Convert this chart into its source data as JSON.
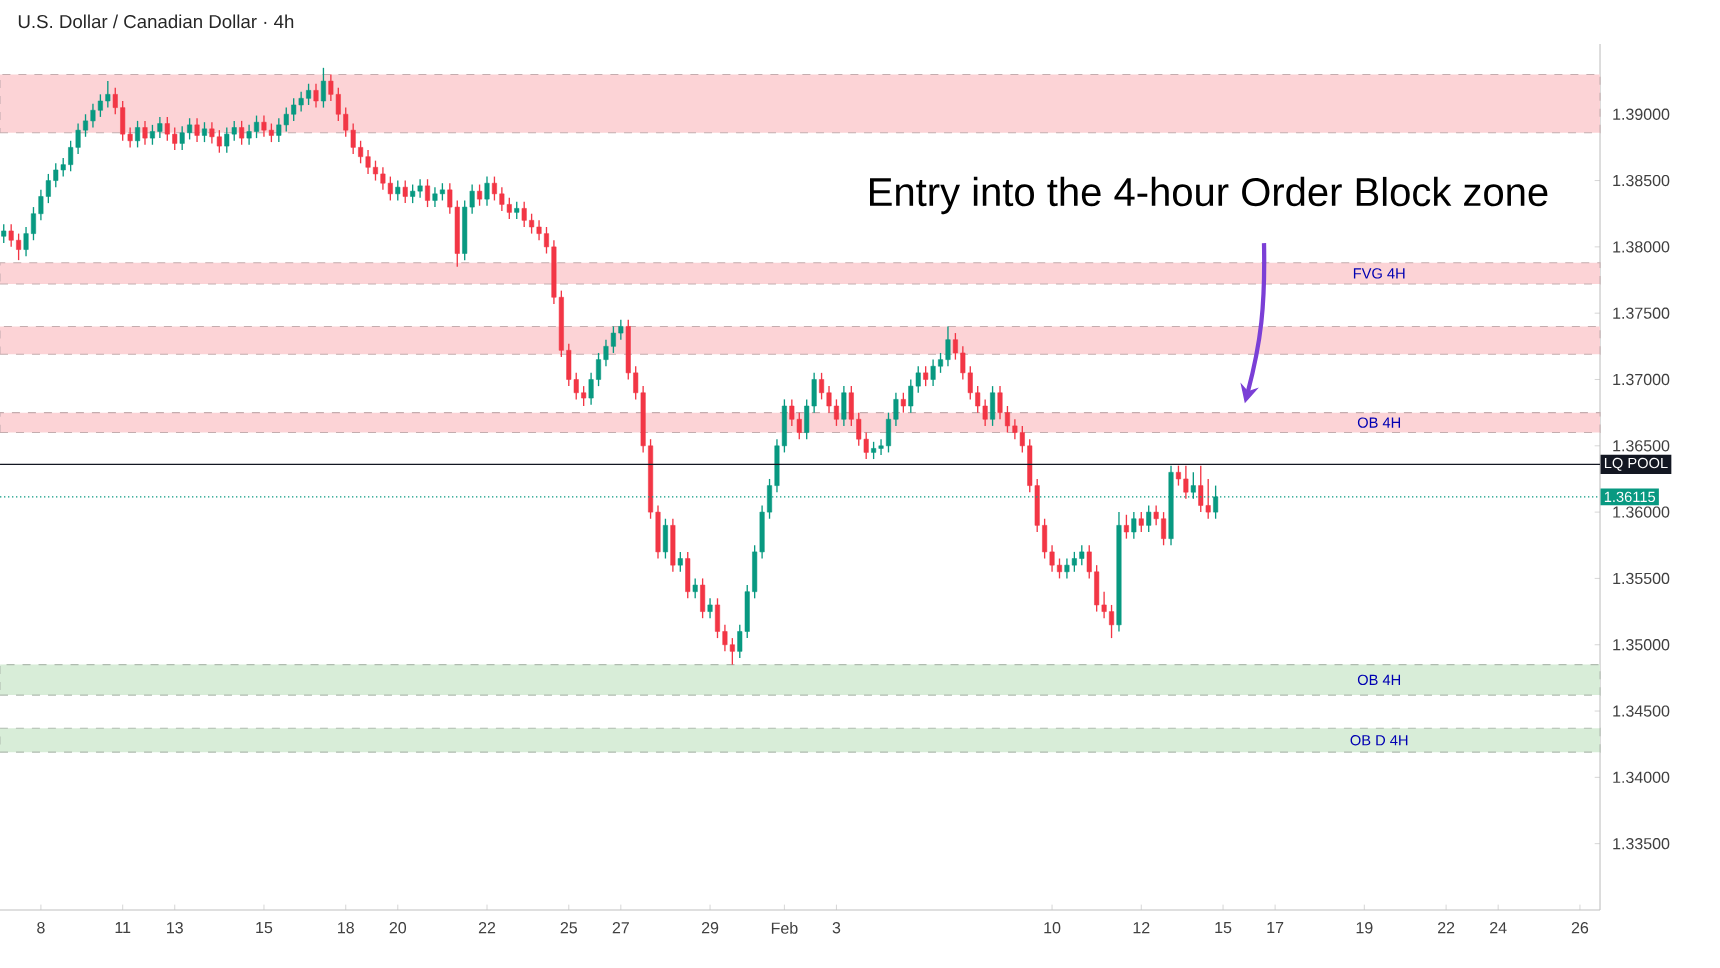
{
  "chart_data": {
    "type": "candlestick",
    "title": "U.S. Dollar / Canadian Dollar · 4h",
    "annotations": [
      "Entry into the 4-hour Order Block zone"
    ],
    "categories": [
      null,
      null,
      null,
      null,
      null,
      "8",
      null,
      null,
      null,
      null,
      null,
      null,
      null,
      null,
      null,
      null,
      "11",
      null,
      null,
      null,
      null,
      null,
      null,
      "13",
      null,
      null,
      null,
      null,
      null,
      null,
      null,
      null,
      null,
      null,
      null,
      "15",
      null,
      null,
      null,
      null,
      null,
      null,
      null,
      null,
      null,
      null,
      "18",
      null,
      null,
      null,
      null,
      null,
      null,
      "20",
      null,
      null,
      null,
      null,
      null,
      null,
      null,
      null,
      null,
      null,
      null,
      "22",
      null,
      null,
      null,
      null,
      null,
      null,
      null,
      null,
      null,
      null,
      "25",
      null,
      null,
      null,
      null,
      null,
      null,
      "27",
      null,
      null,
      null,
      null,
      null,
      null,
      null,
      null,
      null,
      null,
      null,
      "29",
      null,
      null,
      null,
      null,
      null,
      null,
      null,
      null,
      null,
      "Feb",
      null,
      null,
      null,
      null,
      null,
      null,
      "3",
      null,
      null,
      null,
      null,
      null,
      null,
      null,
      null,
      null,
      null,
      null,
      null,
      null,
      null,
      null,
      null,
      null,
      null,
      null,
      null,
      null,
      null,
      null,
      null,
      null,
      null,
      null,
      null,
      "10",
      null,
      null,
      null,
      null,
      null,
      null,
      null,
      null,
      null,
      null,
      null,
      "12",
      null,
      null,
      null,
      null,
      null,
      null,
      null,
      null,
      null,
      null,
      "15",
      null,
      null,
      null,
      null,
      null,
      null,
      "17",
      null,
      null,
      null,
      null,
      null,
      null,
      null,
      null,
      null,
      null,
      null,
      "19",
      null,
      null,
      null,
      null,
      null,
      null,
      null,
      null,
      null,
      null,
      "22",
      null,
      null,
      null,
      null,
      null,
      null,
      "24",
      null,
      null,
      null,
      null,
      null,
      null,
      null,
      null,
      null,
      null,
      "26",
      null,
      null
    ],
    "ohlc": [
      [
        1.3808,
        1.3817,
        1.3803,
        1.3812
      ],
      [
        1.3812,
        1.3817,
        1.38,
        1.3805
      ],
      [
        1.3805,
        1.381,
        1.379,
        1.3798
      ],
      [
        1.3798,
        1.3815,
        1.3793,
        1.381
      ],
      [
        1.381,
        1.383,
        1.3805,
        1.3825
      ],
      [
        1.3825,
        1.3843,
        1.382,
        1.3838
      ],
      [
        1.3838,
        1.3855,
        1.3833,
        1.385
      ],
      [
        1.385,
        1.3863,
        1.3845,
        1.3858
      ],
      [
        1.3858,
        1.3867,
        1.3853,
        1.3862
      ],
      [
        1.3862,
        1.388,
        1.3857,
        1.3875
      ],
      [
        1.3875,
        1.3893,
        1.387,
        1.3888
      ],
      [
        1.3888,
        1.39,
        1.3883,
        1.3895
      ],
      [
        1.3895,
        1.3908,
        1.389,
        1.3903
      ],
      [
        1.3903,
        1.3915,
        1.3898,
        1.391
      ],
      [
        1.391,
        1.3925,
        1.3905,
        1.3915
      ],
      [
        1.3915,
        1.392,
        1.39,
        1.3905
      ],
      [
        1.3905,
        1.391,
        1.388,
        1.3885
      ],
      [
        1.3885,
        1.389,
        1.3875,
        1.388
      ],
      [
        1.388,
        1.3895,
        1.3875,
        1.389
      ],
      [
        1.389,
        1.3895,
        1.3877,
        1.3882
      ],
      [
        1.3882,
        1.3892,
        1.3877,
        1.3887
      ],
      [
        1.3887,
        1.3898,
        1.3882,
        1.3893
      ],
      [
        1.3893,
        1.3898,
        1.388,
        1.3885
      ],
      [
        1.3885,
        1.389,
        1.3873,
        1.3878
      ],
      [
        1.3878,
        1.3891,
        1.3873,
        1.3886
      ],
      [
        1.3886,
        1.3897,
        1.3881,
        1.3892
      ],
      [
        1.3892,
        1.3897,
        1.3879,
        1.3884
      ],
      [
        1.3884,
        1.3894,
        1.3879,
        1.3889
      ],
      [
        1.3889,
        1.3894,
        1.3878,
        1.3883
      ],
      [
        1.3883,
        1.3888,
        1.3871,
        1.3876
      ],
      [
        1.3876,
        1.389,
        1.3871,
        1.3885
      ],
      [
        1.3885,
        1.3895,
        1.388,
        1.389
      ],
      [
        1.389,
        1.3895,
        1.3877,
        1.3882
      ],
      [
        1.3882,
        1.3892,
        1.3877,
        1.3887
      ],
      [
        1.3887,
        1.3899,
        1.3882,
        1.3894
      ],
      [
        1.3894,
        1.3899,
        1.3883,
        1.3888
      ],
      [
        1.3888,
        1.3893,
        1.3879,
        1.3884
      ],
      [
        1.3884,
        1.3897,
        1.3879,
        1.3892
      ],
      [
        1.3892,
        1.3905,
        1.3887,
        1.39
      ],
      [
        1.39,
        1.3912,
        1.3895,
        1.3907
      ],
      [
        1.3907,
        1.3917,
        1.3902,
        1.3912
      ],
      [
        1.3912,
        1.3923,
        1.3907,
        1.3918
      ],
      [
        1.3918,
        1.3923,
        1.3905,
        1.391
      ],
      [
        1.391,
        1.3935,
        1.3905,
        1.3925
      ],
      [
        1.3925,
        1.393,
        1.391,
        1.3915
      ],
      [
        1.3915,
        1.392,
        1.3895,
        1.39
      ],
      [
        1.39,
        1.3905,
        1.3883,
        1.3888
      ],
      [
        1.3888,
        1.3893,
        1.387,
        1.3875
      ],
      [
        1.3875,
        1.388,
        1.3863,
        1.3868
      ],
      [
        1.3868,
        1.3873,
        1.3855,
        1.386
      ],
      [
        1.386,
        1.3865,
        1.385,
        1.3855
      ],
      [
        1.3855,
        1.386,
        1.3843,
        1.3848
      ],
      [
        1.3848,
        1.3853,
        1.3835,
        1.384
      ],
      [
        1.384,
        1.385,
        1.3835,
        1.3845
      ],
      [
        1.3845,
        1.385,
        1.3833,
        1.3838
      ],
      [
        1.3838,
        1.3847,
        1.3833,
        1.3842
      ],
      [
        1.3842,
        1.3851,
        1.3837,
        1.3846
      ],
      [
        1.3846,
        1.3851,
        1.383,
        1.3835
      ],
      [
        1.3835,
        1.3845,
        1.383,
        1.384
      ],
      [
        1.384,
        1.3848,
        1.3835,
        1.3843
      ],
      [
        1.3843,
        1.3848,
        1.3825,
        1.383
      ],
      [
        1.383,
        1.3835,
        1.3785,
        1.3795
      ],
      [
        1.3795,
        1.3835,
        1.379,
        1.383
      ],
      [
        1.383,
        1.3847,
        1.3825,
        1.3842
      ],
      [
        1.3842,
        1.3847,
        1.3831,
        1.3836
      ],
      [
        1.3836,
        1.3853,
        1.3831,
        1.3848
      ],
      [
        1.3848,
        1.3853,
        1.3835,
        1.384
      ],
      [
        1.384,
        1.3845,
        1.3827,
        1.3832
      ],
      [
        1.3832,
        1.3837,
        1.3821,
        1.3826
      ],
      [
        1.3826,
        1.3834,
        1.3821,
        1.3829
      ],
      [
        1.3829,
        1.3834,
        1.3815,
        1.382
      ],
      [
        1.382,
        1.3825,
        1.381,
        1.3815
      ],
      [
        1.3815,
        1.382,
        1.3805,
        1.381
      ],
      [
        1.381,
        1.3815,
        1.3795,
        1.38
      ],
      [
        1.38,
        1.3805,
        1.3757,
        1.3762
      ],
      [
        1.3762,
        1.3767,
        1.3717,
        1.3722
      ],
      [
        1.3722,
        1.3727,
        1.3695,
        1.37
      ],
      [
        1.37,
        1.3705,
        1.3685,
        1.369
      ],
      [
        1.369,
        1.3695,
        1.368,
        1.3686
      ],
      [
        1.3686,
        1.3705,
        1.3681,
        1.37
      ],
      [
        1.37,
        1.372,
        1.3695,
        1.3715
      ],
      [
        1.3715,
        1.373,
        1.371,
        1.3725
      ],
      [
        1.3725,
        1.374,
        1.372,
        1.3735
      ],
      [
        1.3735,
        1.3745,
        1.373,
        1.374
      ],
      [
        1.374,
        1.3745,
        1.37,
        1.3705
      ],
      [
        1.3705,
        1.371,
        1.3685,
        1.369
      ],
      [
        1.369,
        1.3695,
        1.3645,
        1.365
      ],
      [
        1.365,
        1.3655,
        1.3595,
        1.36
      ],
      [
        1.36,
        1.3605,
        1.3565,
        1.357
      ],
      [
        1.357,
        1.3595,
        1.3565,
        1.359
      ],
      [
        1.359,
        1.3595,
        1.3555,
        1.356
      ],
      [
        1.356,
        1.357,
        1.3555,
        1.3565
      ],
      [
        1.3565,
        1.357,
        1.3535,
        1.354
      ],
      [
        1.354,
        1.355,
        1.3535,
        1.3545
      ],
      [
        1.3545,
        1.355,
        1.352,
        1.3525
      ],
      [
        1.3525,
        1.3535,
        1.352,
        1.353
      ],
      [
        1.353,
        1.3535,
        1.3505,
        1.351
      ],
      [
        1.351,
        1.3515,
        1.3495,
        1.35
      ],
      [
        1.35,
        1.3505,
        1.3485,
        1.3495
      ],
      [
        1.3495,
        1.3515,
        1.349,
        1.351
      ],
      [
        1.351,
        1.3545,
        1.3505,
        1.354
      ],
      [
        1.354,
        1.3575,
        1.3535,
        1.357
      ],
      [
        1.357,
        1.3605,
        1.3565,
        1.36
      ],
      [
        1.36,
        1.3625,
        1.3595,
        1.362
      ],
      [
        1.362,
        1.3655,
        1.3615,
        1.365
      ],
      [
        1.365,
        1.3685,
        1.3645,
        1.368
      ],
      [
        1.368,
        1.3685,
        1.3665,
        1.367
      ],
      [
        1.367,
        1.3675,
        1.3655,
        1.366
      ],
      [
        1.366,
        1.3685,
        1.3655,
        1.368
      ],
      [
        1.368,
        1.3705,
        1.3675,
        1.37
      ],
      [
        1.37,
        1.3705,
        1.3685,
        1.369
      ],
      [
        1.369,
        1.3695,
        1.3675,
        1.368
      ],
      [
        1.368,
        1.3685,
        1.3665,
        1.367
      ],
      [
        1.367,
        1.3695,
        1.3665,
        1.369
      ],
      [
        1.369,
        1.3695,
        1.3665,
        1.367
      ],
      [
        1.367,
        1.3675,
        1.365,
        1.3655
      ],
      [
        1.3655,
        1.366,
        1.364,
        1.3645
      ],
      [
        1.3645,
        1.3653,
        1.364,
        1.3648
      ],
      [
        1.3648,
        1.3655,
        1.3643,
        1.365
      ],
      [
        1.365,
        1.3675,
        1.3645,
        1.367
      ],
      [
        1.367,
        1.369,
        1.3665,
        1.3685
      ],
      [
        1.3685,
        1.369,
        1.3675,
        1.368
      ],
      [
        1.368,
        1.37,
        1.3675,
        1.3695
      ],
      [
        1.3695,
        1.371,
        1.369,
        1.3705
      ],
      [
        1.3705,
        1.371,
        1.3695,
        1.37
      ],
      [
        1.37,
        1.3715,
        1.3695,
        1.371
      ],
      [
        1.371,
        1.372,
        1.3705,
        1.3715
      ],
      [
        1.3715,
        1.374,
        1.371,
        1.373
      ],
      [
        1.373,
        1.3735,
        1.3715,
        1.372
      ],
      [
        1.372,
        1.3725,
        1.37,
        1.3705
      ],
      [
        1.3705,
        1.371,
        1.3685,
        1.369
      ],
      [
        1.369,
        1.3695,
        1.3675,
        1.368
      ],
      [
        1.368,
        1.3685,
        1.3665,
        1.367
      ],
      [
        1.367,
        1.3695,
        1.3665,
        1.369
      ],
      [
        1.369,
        1.3695,
        1.367,
        1.3675
      ],
      [
        1.3675,
        1.368,
        1.366,
        1.3665
      ],
      [
        1.3665,
        1.367,
        1.3655,
        1.366
      ],
      [
        1.366,
        1.3665,
        1.3645,
        1.365
      ],
      [
        1.365,
        1.3655,
        1.3615,
        1.362
      ],
      [
        1.362,
        1.3625,
        1.3585,
        1.359
      ],
      [
        1.359,
        1.3595,
        1.3565,
        1.357
      ],
      [
        1.357,
        1.3575,
        1.3555,
        1.356
      ],
      [
        1.356,
        1.3565,
        1.355,
        1.3555
      ],
      [
        1.3555,
        1.3565,
        1.355,
        1.356
      ],
      [
        1.356,
        1.357,
        1.3555,
        1.3565
      ],
      [
        1.3565,
        1.3575,
        1.356,
        1.357
      ],
      [
        1.357,
        1.3575,
        1.355,
        1.3555
      ],
      [
        1.3555,
        1.356,
        1.3525,
        1.353
      ],
      [
        1.353,
        1.354,
        1.352,
        1.3525
      ],
      [
        1.3525,
        1.353,
        1.3505,
        1.3515
      ],
      [
        1.3515,
        1.36,
        1.351,
        1.359
      ],
      [
        1.359,
        1.3598,
        1.358,
        1.3585
      ],
      [
        1.3585,
        1.36,
        1.358,
        1.3595
      ],
      [
        1.3595,
        1.36,
        1.3585,
        1.359
      ],
      [
        1.359,
        1.3605,
        1.3585,
        1.36
      ],
      [
        1.36,
        1.3605,
        1.359,
        1.3595
      ],
      [
        1.3595,
        1.36,
        1.3575,
        1.358
      ],
      [
        1.358,
        1.3635,
        1.3575,
        1.363
      ],
      [
        1.363,
        1.3635,
        1.362,
        1.3625
      ],
      [
        1.3625,
        1.3635,
        1.361,
        1.3615
      ],
      [
        1.3615,
        1.363,
        1.361,
        1.362
      ],
      [
        1.362,
        1.3635,
        1.36,
        1.3605
      ],
      [
        1.3605,
        1.3625,
        1.3595,
        1.36
      ],
      [
        1.36,
        1.362,
        1.3595,
        1.36115
      ],
      null,
      null,
      null,
      null,
      null,
      null,
      null,
      null,
      null,
      null,
      null,
      null,
      null,
      null,
      null,
      null,
      null,
      null,
      null,
      null,
      null,
      null,
      null,
      null,
      null,
      null,
      null,
      null,
      null,
      null,
      null,
      null,
      null,
      null,
      null,
      null,
      null,
      null,
      null,
      null,
      null,
      null,
      null,
      null,
      null,
      null,
      null,
      null,
      null,
      null,
      null
    ],
    "ylim": [
      1.33,
      1.3953
    ],
    "yticks": [
      {
        "value": 1.335,
        "label": "1.33500"
      },
      {
        "value": 1.34,
        "label": "1.34000"
      },
      {
        "value": 1.345,
        "label": "1.34500"
      },
      {
        "value": 1.35,
        "label": "1.35000"
      },
      {
        "value": 1.355,
        "label": "1.35500"
      },
      {
        "value": 1.36,
        "label": "1.36000"
      },
      {
        "value": 1.365,
        "label": "1.36500"
      },
      {
        "value": 1.37,
        "label": "1.37000"
      },
      {
        "value": 1.375,
        "label": "1.37500"
      },
      {
        "value": 1.38,
        "label": "1.38000"
      },
      {
        "value": 1.385,
        "label": "1.38500"
      },
      {
        "value": 1.39,
        "label": "1.39000"
      }
    ],
    "bands": [
      {
        "axis": "y",
        "from": 1.3886,
        "to": 1.393,
        "color": "#fcd3d6"
      },
      {
        "axis": "y",
        "from": 1.3772,
        "to": 1.3788,
        "color": "#fcd3d6",
        "label": "FVG 4H"
      },
      {
        "axis": "y",
        "from": 1.3719,
        "to": 1.374,
        "color": "#fcd3d6"
      },
      {
        "axis": "y",
        "from": 1.366,
        "to": 1.3675,
        "color": "#fcd3d6",
        "label": "OB 4H"
      },
      {
        "axis": "y",
        "from": 1.3462,
        "to": 1.3485,
        "color": "#d8edd8",
        "label": "OB 4H"
      },
      {
        "axis": "y",
        "from": 1.3419,
        "to": 1.3437,
        "color": "#d8edd8",
        "label": "OB D 4H"
      }
    ],
    "ref_lines": [
      {
        "axis": "y",
        "value": 1.3636,
        "label": "LQ POOL",
        "color": "#131722",
        "line_style": "solid"
      },
      {
        "axis": "y",
        "value": 1.36115,
        "label": "1.36115",
        "color": "#089981",
        "line_style": "dotted"
      }
    ]
  }
}
